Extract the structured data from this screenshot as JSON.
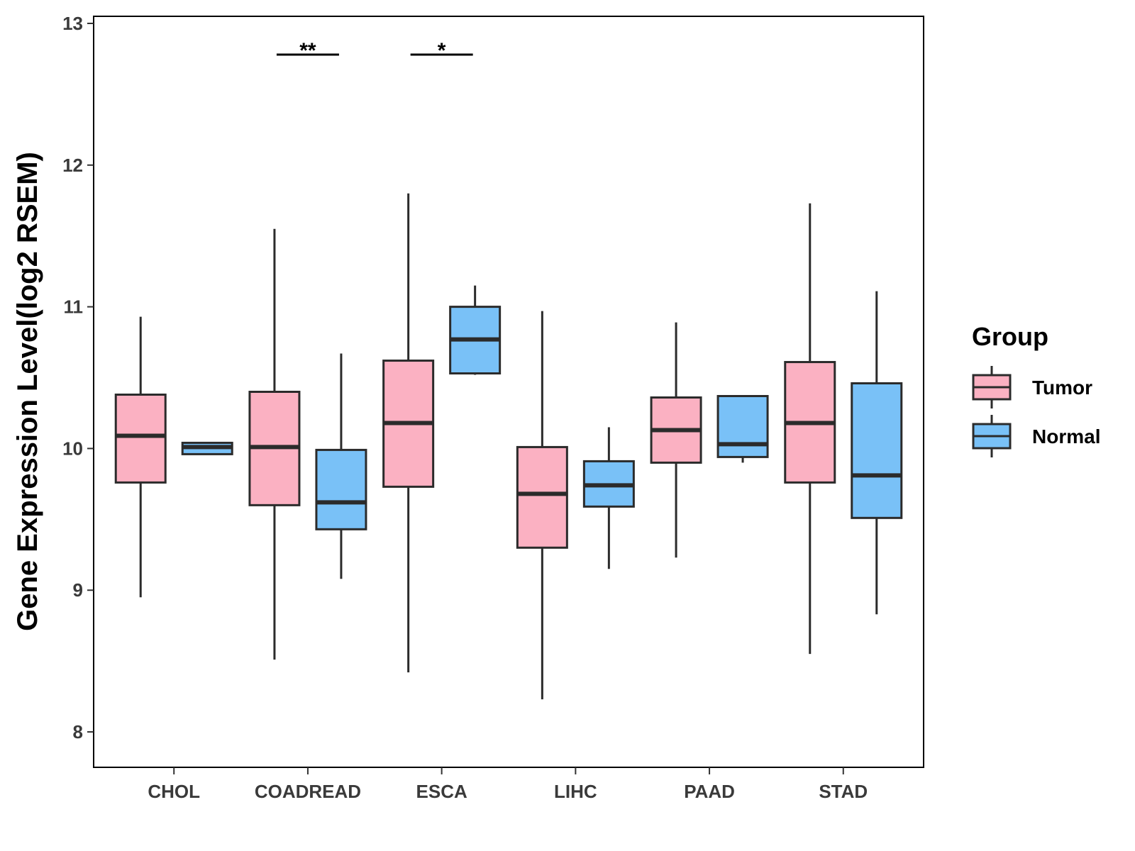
{
  "chart_data": {
    "type": "boxplot",
    "title": "",
    "xlabel": "",
    "ylabel": "Gene Expression Level(log2 RSEM)",
    "ylim": [
      7.75,
      13.05
    ],
    "yticks": [
      8,
      9,
      10,
      11,
      12,
      13
    ],
    "grid": false,
    "categories": [
      "CHOL",
      "COADREAD",
      "ESCA",
      "LIHC",
      "PAAD",
      "STAD"
    ],
    "series": [
      {
        "name": "Tumor",
        "color": "#FBB1C2",
        "boxes": [
          {
            "min": 8.95,
            "q1": 9.76,
            "median": 10.09,
            "q3": 10.38,
            "max": 10.93
          },
          {
            "min": 8.51,
            "q1": 9.6,
            "median": 10.01,
            "q3": 10.4,
            "max": 11.55
          },
          {
            "min": 8.42,
            "q1": 9.73,
            "median": 10.18,
            "q3": 10.62,
            "max": 11.8
          },
          {
            "min": 8.23,
            "q1": 9.3,
            "median": 9.68,
            "q3": 10.01,
            "max": 10.97
          },
          {
            "min": 9.23,
            "q1": 9.9,
            "median": 10.13,
            "q3": 10.36,
            "max": 10.89
          },
          {
            "min": 8.55,
            "q1": 9.76,
            "median": 10.18,
            "q3": 10.61,
            "max": 11.73
          }
        ]
      },
      {
        "name": "Normal",
        "color": "#79C1F7",
        "boxes": [
          {
            "min": 9.96,
            "q1": 9.96,
            "median": 10.01,
            "q3": 10.04,
            "max": 10.04
          },
          {
            "min": 9.08,
            "q1": 9.43,
            "median": 9.62,
            "q3": 9.99,
            "max": 10.67
          },
          {
            "min": 10.52,
            "q1": 10.53,
            "median": 10.77,
            "q3": 11.0,
            "max": 11.15
          },
          {
            "min": 9.15,
            "q1": 9.59,
            "median": 9.74,
            "q3": 9.91,
            "max": 10.15
          },
          {
            "min": 9.9,
            "q1": 9.94,
            "median": 10.03,
            "q3": 10.37,
            "max": 10.37
          },
          {
            "min": 8.83,
            "q1": 9.51,
            "median": 9.81,
            "q3": 10.46,
            "max": 11.11
          }
        ]
      }
    ],
    "significance": [
      {
        "category": "COADREAD",
        "label": "**",
        "y": 12.78
      },
      {
        "category": "ESCA",
        "label": "*",
        "y": 12.78
      }
    ],
    "legend": {
      "title": "Group",
      "position": "right",
      "entries": [
        "Tumor",
        "Normal"
      ]
    }
  }
}
